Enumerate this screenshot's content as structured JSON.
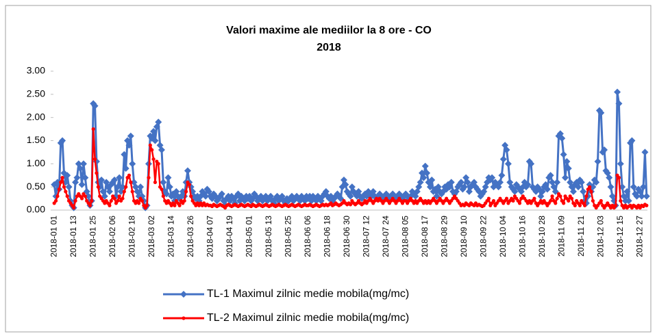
{
  "chart_data": {
    "type": "line",
    "title": "Valori maxime ale mediilor la 8 ore - CO",
    "subtitle": "2018",
    "categories": [
      "2018-01 01",
      null,
      null,
      null,
      null,
      null,
      null,
      null,
      null,
      null,
      null,
      null,
      "2018-01 13",
      null,
      null,
      null,
      null,
      null,
      null,
      null,
      null,
      null,
      null,
      null,
      "2018-01 25",
      null,
      null,
      null,
      null,
      null,
      null,
      null,
      null,
      null,
      null,
      null,
      "2018-02 06",
      null,
      null,
      null,
      null,
      null,
      null,
      null,
      null,
      null,
      null,
      null,
      "2018-02 18",
      null,
      null,
      null,
      null,
      null,
      null,
      null,
      null,
      null,
      null,
      null,
      "2018-03 02",
      null,
      null,
      null,
      null,
      null,
      null,
      null,
      null,
      null,
      null,
      null,
      "2018-03 14",
      null,
      null,
      null,
      null,
      null,
      null,
      null,
      null,
      null,
      null,
      null,
      "2018-03 26",
      null,
      null,
      null,
      null,
      null,
      null,
      null,
      null,
      null,
      null,
      null,
      "2018-04 07",
      null,
      null,
      null,
      null,
      null,
      null,
      null,
      null,
      null,
      null,
      null,
      "2018-04 19",
      null,
      null,
      null,
      null,
      null,
      null,
      null,
      null,
      null,
      null,
      null,
      "2018-05 01",
      null,
      null,
      null,
      null,
      null,
      null,
      null,
      null,
      null,
      null,
      null,
      "2018-05 13",
      null,
      null,
      null,
      null,
      null,
      null,
      null,
      null,
      null,
      null,
      null,
      "2018-05 25",
      null,
      null,
      null,
      null,
      null,
      null,
      null,
      null,
      null,
      null,
      null,
      "2018-06 06",
      null,
      null,
      null,
      null,
      null,
      null,
      null,
      null,
      null,
      null,
      null,
      "2018-06 18",
      null,
      null,
      null,
      null,
      null,
      null,
      null,
      null,
      null,
      null,
      null,
      "2018-06 30",
      null,
      null,
      null,
      null,
      null,
      null,
      null,
      null,
      null,
      null,
      null,
      "2018-07 12",
      null,
      null,
      null,
      null,
      null,
      null,
      null,
      null,
      null,
      null,
      null,
      "2018-07 24",
      null,
      null,
      null,
      null,
      null,
      null,
      null,
      null,
      null,
      null,
      null,
      "2018-08 05",
      null,
      null,
      null,
      null,
      null,
      null,
      null,
      null,
      null,
      null,
      null,
      "2018-08 17",
      null,
      null,
      null,
      null,
      null,
      null,
      null,
      null,
      null,
      null,
      null,
      "2018-08 29",
      null,
      null,
      null,
      null,
      null,
      null,
      null,
      null,
      null,
      null,
      null,
      "2018-09 10",
      null,
      null,
      null,
      null,
      null,
      null,
      null,
      null,
      null,
      null,
      null,
      "2018-09 22",
      null,
      null,
      null,
      null,
      null,
      null,
      null,
      null,
      null,
      null,
      null,
      "2018-10 04",
      null,
      null,
      null,
      null,
      null,
      null,
      null,
      null,
      null,
      null,
      null,
      "2018-10 16",
      null,
      null,
      null,
      null,
      null,
      null,
      null,
      null,
      null,
      null,
      null,
      "2018-10 28",
      null,
      null,
      null,
      null,
      null,
      null,
      null,
      null,
      null,
      null,
      null,
      "2018-11 09",
      null,
      null,
      null,
      null,
      null,
      null,
      null,
      null,
      null,
      null,
      null,
      "2018-11 21",
      null,
      null,
      null,
      null,
      null,
      null,
      null,
      null,
      null,
      null,
      null,
      "2018-12 03",
      null,
      null,
      null,
      null,
      null,
      null,
      null,
      null,
      null,
      null,
      null,
      "2018-12 15",
      null,
      null,
      null,
      null,
      null,
      null,
      null,
      null,
      null,
      null,
      null,
      "2018-12 27",
      null,
      null,
      null,
      null
    ],
    "series": [
      {
        "name": "TL-1 Maximul zilnic medie mobila(mg/mc)",
        "color": "#4472c4",
        "marker": "diamond",
        "values": [
          0.55,
          0.3,
          0.6,
          0.45,
          1.45,
          1.5,
          0.8,
          0.6,
          0.75,
          0.5,
          0.2,
          0.1,
          0.05,
          0.6,
          0.7,
          1.0,
          0.9,
          0.55,
          1.0,
          0.7,
          0.4,
          0.3,
          0.1,
          0.2,
          2.3,
          2.25,
          1.05,
          0.6,
          0.5,
          0.65,
          0.4,
          0.3,
          0.6,
          0.5,
          0.4,
          0.55,
          0.6,
          0.65,
          0.3,
          0.5,
          0.7,
          0.4,
          0.5,
          1.2,
          0.9,
          1.5,
          1.4,
          1.6,
          1.0,
          0.6,
          0.5,
          0.4,
          0.3,
          0.5,
          0.3,
          0.2,
          0.05,
          0.1,
          1.0,
          1.6,
          1.55,
          1.7,
          1.5,
          1.8,
          1.9,
          1.4,
          1.3,
          0.6,
          0.4,
          0.35,
          0.7,
          0.5,
          0.3,
          0.35,
          0.2,
          0.4,
          0.3,
          0.25,
          0.3,
          0.4,
          0.3,
          0.6,
          0.85,
          0.6,
          0.5,
          0.4,
          0.3,
          0.25,
          0.3,
          0.2,
          0.3,
          0.4,
          0.35,
          0.3,
          0.45,
          0.4,
          0.3,
          0.25,
          0.35,
          0.3,
          0.2,
          0.25,
          0.3,
          0.35,
          0.2,
          0.1,
          0.25,
          0.3,
          0.2,
          0.3,
          0.25,
          0.15,
          0.3,
          0.35,
          0.2,
          0.3,
          0.25,
          0.2,
          0.3,
          0.25,
          0.3,
          0.2,
          0.25,
          0.35,
          0.3,
          0.2,
          0.25,
          0.3,
          0.2,
          0.25,
          0.3,
          0.2,
          0.25,
          0.3,
          0.2,
          0.15,
          0.25,
          0.3,
          0.2,
          0.25,
          0.3,
          0.2,
          0.15,
          0.25,
          0.2,
          0.25,
          0.3,
          0.2,
          0.25,
          0.3,
          0.25,
          0.2,
          0.3,
          0.25,
          0.2,
          0.3,
          0.25,
          0.3,
          0.2,
          0.3,
          0.25,
          0.2,
          0.3,
          0.25,
          0.2,
          0.3,
          0.35,
          0.4,
          0.3,
          0.25,
          0.3,
          0.2,
          0.25,
          0.3,
          0.35,
          0.3,
          0.25,
          0.5,
          0.65,
          0.55,
          0.4,
          0.35,
          0.3,
          0.5,
          0.4,
          0.35,
          0.3,
          0.4,
          0.3,
          0.25,
          0.3,
          0.35,
          0.3,
          0.4,
          0.35,
          0.3,
          0.4,
          0.3,
          0.25,
          0.3,
          0.35,
          0.3,
          0.25,
          0.3,
          0.35,
          0.3,
          0.25,
          0.3,
          0.35,
          0.3,
          0.25,
          0.3,
          0.35,
          0.3,
          0.25,
          0.3,
          0.35,
          0.3,
          0.25,
          0.3,
          0.4,
          0.35,
          0.3,
          0.4,
          0.5,
          0.6,
          0.8,
          0.7,
          0.95,
          0.8,
          0.6,
          0.5,
          0.65,
          0.4,
          0.45,
          0.3,
          0.5,
          0.4,
          0.35,
          0.4,
          0.5,
          0.45,
          0.55,
          0.5,
          0.6,
          0.4,
          0.35,
          0.4,
          0.5,
          0.55,
          0.6,
          0.45,
          0.5,
          0.7,
          0.6,
          0.4,
          0.5,
          0.55,
          0.6,
          0.5,
          0.45,
          0.4,
          0.3,
          0.35,
          0.4,
          0.5,
          0.6,
          0.7,
          0.65,
          0.7,
          0.5,
          0.6,
          0.55,
          0.5,
          0.6,
          0.75,
          1.1,
          1.4,
          1.3,
          1.0,
          0.6,
          0.5,
          0.45,
          0.4,
          0.55,
          0.5,
          0.45,
          0.4,
          0.5,
          0.6,
          0.5,
          0.55,
          1.05,
          1.0,
          0.5,
          0.45,
          0.4,
          0.5,
          0.45,
          0.3,
          0.4,
          0.5,
          0.55,
          0.45,
          0.7,
          0.75,
          0.6,
          0.5,
          0.4,
          0.6,
          1.6,
          1.65,
          1.55,
          1.2,
          0.7,
          1.05,
          0.9,
          0.6,
          0.5,
          0.4,
          0.55,
          0.6,
          0.5,
          0.65,
          0.6,
          0.4,
          0.2,
          0.15,
          0.3,
          0.55,
          0.4,
          0.5,
          0.65,
          0.6,
          1.05,
          2.15,
          2.1,
          1.25,
          1.3,
          0.85,
          0.8,
          0.7,
          0.5,
          0.3,
          0.2,
          0.1,
          2.55,
          2.3,
          1.0,
          0.5,
          0.3,
          0.2,
          0.4,
          0.2,
          1.45,
          1.5,
          0.5,
          0.35,
          0.3,
          0.45,
          0.4,
          0.3,
          0.5,
          1.25,
          0.3
        ]
      },
      {
        "name": "TL-2 Maximul zilnic medie mobila(mg/mc)",
        "color": "#ff0000",
        "marker": "circle",
        "values": [
          0.15,
          0.2,
          0.3,
          0.45,
          0.6,
          0.7,
          0.5,
          0.4,
          0.3,
          0.2,
          0.15,
          0.1,
          0.05,
          0.2,
          0.3,
          0.35,
          0.3,
          0.25,
          0.35,
          0.3,
          0.2,
          0.15,
          0.1,
          0.2,
          1.75,
          1.1,
          0.8,
          0.5,
          0.3,
          0.25,
          0.2,
          0.15,
          0.2,
          0.15,
          0.1,
          0.2,
          0.3,
          0.25,
          0.15,
          0.2,
          0.3,
          0.2,
          0.25,
          0.4,
          0.5,
          0.7,
          0.75,
          0.6,
          0.4,
          0.2,
          0.15,
          0.2,
          0.15,
          0.25,
          0.2,
          0.1,
          0.05,
          0.1,
          0.7,
          1.4,
          1.3,
          1.1,
          0.6,
          1.05,
          1.0,
          0.5,
          0.45,
          0.3,
          0.2,
          0.15,
          0.2,
          0.15,
          0.1,
          0.15,
          0.1,
          0.2,
          0.15,
          0.1,
          0.2,
          0.15,
          0.2,
          0.4,
          0.6,
          0.55,
          0.3,
          0.2,
          0.15,
          0.1,
          0.15,
          0.1,
          0.15,
          0.1,
          0.15,
          0.1,
          0.12,
          0.1,
          0.1,
          0.08,
          0.12,
          0.1,
          0.08,
          0.1,
          0.12,
          0.1,
          0.08,
          0.05,
          0.1,
          0.12,
          0.1,
          0.08,
          0.1,
          0.12,
          0.1,
          0.08,
          0.1,
          0.12,
          0.1,
          0.08,
          0.1,
          0.12,
          0.1,
          0.08,
          0.12,
          0.1,
          0.08,
          0.1,
          0.12,
          0.1,
          0.08,
          0.1,
          0.12,
          0.1,
          0.08,
          0.1,
          0.12,
          0.1,
          0.08,
          0.1,
          0.12,
          0.1,
          0.08,
          0.1,
          0.12,
          0.1,
          0.08,
          0.1,
          0.12,
          0.1,
          0.08,
          0.1,
          0.12,
          0.1,
          0.08,
          0.1,
          0.12,
          0.1,
          0.1,
          0.12,
          0.1,
          0.08,
          0.1,
          0.12,
          0.1,
          0.08,
          0.1,
          0.12,
          0.1,
          0.12,
          0.1,
          0.12,
          0.15,
          0.1,
          0.12,
          0.15,
          0.12,
          0.1,
          0.12,
          0.15,
          0.2,
          0.15,
          0.12,
          0.15,
          0.12,
          0.2,
          0.15,
          0.12,
          0.15,
          0.2,
          0.15,
          0.12,
          0.15,
          0.2,
          0.15,
          0.2,
          0.25,
          0.2,
          0.15,
          0.2,
          0.25,
          0.2,
          0.25,
          0.2,
          0.15,
          0.2,
          0.25,
          0.2,
          0.15,
          0.2,
          0.25,
          0.2,
          0.15,
          0.2,
          0.25,
          0.2,
          0.15,
          0.2,
          0.2,
          0.15,
          0.2,
          0.25,
          0.2,
          0.15,
          0.2,
          0.15,
          0.2,
          0.25,
          0.2,
          0.15,
          0.2,
          0.15,
          0.2,
          0.15,
          0.2,
          0.25,
          0.2,
          0.15,
          0.2,
          0.25,
          0.2,
          0.15,
          0.2,
          0.25,
          0.2,
          0.15,
          0.2,
          0.25,
          0.3,
          0.25,
          0.2,
          0.15,
          0.1,
          0.12,
          0.1,
          0.15,
          0.12,
          0.1,
          0.15,
          0.12,
          0.1,
          0.15,
          0.1,
          0.12,
          0.1,
          0.08,
          0.1,
          0.15,
          0.2,
          0.25,
          0.1,
          0.15,
          0.2,
          0.1,
          0.15,
          0.2,
          0.25,
          0.2,
          0.15,
          0.2,
          0.25,
          0.15,
          0.2,
          0.25,
          0.2,
          0.3,
          0.25,
          0.2,
          0.15,
          0.25,
          0.3,
          0.25,
          0.2,
          0.15,
          0.2,
          0.15,
          0.2,
          0.25,
          0.15,
          0.1,
          0.15,
          0.2,
          0.15,
          0.2,
          0.15,
          0.1,
          0.15,
          0.2,
          0.3,
          0.2,
          0.15,
          0.25,
          0.35,
          0.3,
          0.2,
          0.15,
          0.3,
          0.25,
          0.2,
          0.3,
          0.25,
          0.15,
          0.1,
          0.2,
          0.15,
          0.1,
          0.2,
          0.15,
          0.1,
          0.3,
          0.45,
          0.5,
          0.4,
          0.2,
          0.1,
          0.05,
          0.1,
          0.15,
          0.2,
          0.1,
          0.05,
          0.1,
          0.15,
          0.1,
          0.05,
          0.1,
          0.05,
          0.1,
          0.75,
          0.7,
          0.2,
          0.1,
          0.05,
          0.1,
          0.05,
          0.08,
          0.1,
          0.05,
          0.1,
          0.08,
          0.05,
          0.1,
          0.05,
          0.1,
          0.08,
          0.12,
          0.1
        ]
      }
    ],
    "ylim": [
      0,
      3
    ],
    "yticks": [
      {
        "value": 0,
        "label": "0.00"
      },
      {
        "value": 0.5,
        "label": "0.50"
      },
      {
        "value": 1,
        "label": "1.00"
      },
      {
        "value": 1.5,
        "label": "1.50"
      },
      {
        "value": 2,
        "label": "2.00"
      },
      {
        "value": 2.5,
        "label": "2.50"
      },
      {
        "value": 3,
        "label": "3.00"
      }
    ],
    "grid": false,
    "legend": "bottom"
  }
}
